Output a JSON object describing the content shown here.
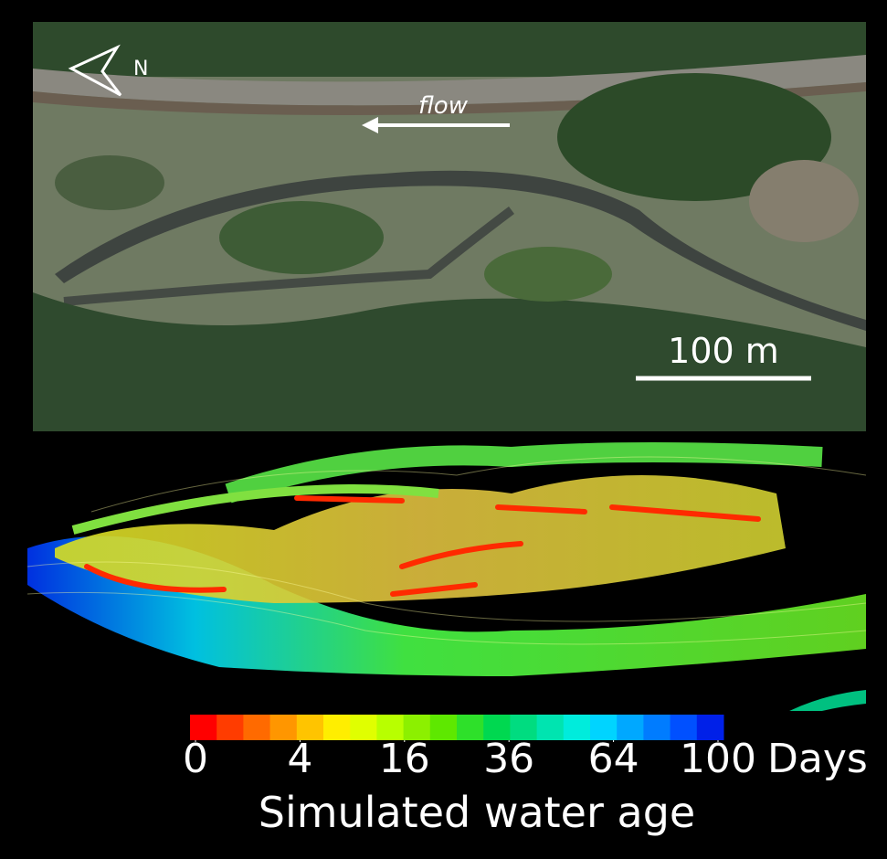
{
  "photo": {
    "flow_label": "flow",
    "north_label": "N",
    "scale_label": "100 m"
  },
  "chart_data": {
    "type": "colorbar",
    "title": "Simulated water age",
    "unit": "Days",
    "scale": "sqrt",
    "lim": [
      0,
      100
    ],
    "ticks": [
      0,
      4,
      16,
      36,
      64,
      100
    ],
    "colors": [
      "#ff0000",
      "#ff3c00",
      "#ff6a00",
      "#ff9600",
      "#ffc400",
      "#ffee00",
      "#e0ff00",
      "#b8ff00",
      "#8cf000",
      "#5ee800",
      "#2ee02a",
      "#00d850",
      "#00dc80",
      "#00e4b0",
      "#00ecdc",
      "#00d4ff",
      "#00a8ff",
      "#007cff",
      "#0050ff",
      "#0020e8"
    ]
  }
}
